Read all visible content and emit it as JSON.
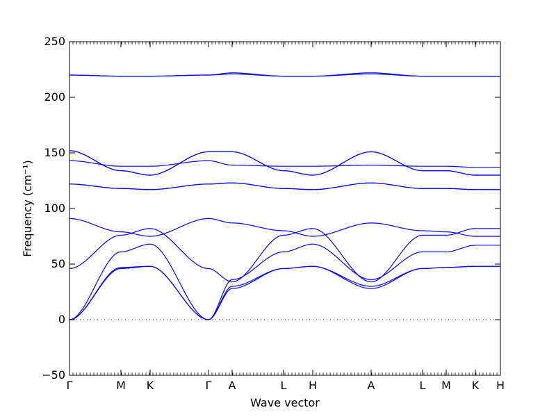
{
  "chart_data": {
    "type": "line",
    "title": "",
    "xlabel": "Wave vector",
    "ylabel": "Frequency (cm⁻¹)",
    "ylim": [
      -50,
      250
    ],
    "yticks": [
      -50,
      0,
      50,
      100,
      150,
      200,
      250
    ],
    "x_range": [
      0,
      6.2
    ],
    "grid": false,
    "legend": "none",
    "line_color": "#0000ff",
    "zero_line": {
      "value": 0,
      "style": "dotted",
      "color": "#1a1a80"
    },
    "x_ticks": [
      {
        "label": "Γ",
        "x": 0.0
      },
      {
        "label": "M",
        "x": 0.74
      },
      {
        "label": "K",
        "x": 1.16
      },
      {
        "label": "Γ",
        "x": 2.0
      },
      {
        "label": "A",
        "x": 2.34
      },
      {
        "label": "L",
        "x": 3.08
      },
      {
        "label": "H",
        "x": 3.5
      },
      {
        "label": "A",
        "x": 4.34
      },
      {
        "label": "L",
        "x": 5.08
      },
      {
        "label": "M",
        "x": 5.42
      },
      {
        "label": "K",
        "x": 5.84
      },
      {
        "label": "H",
        "x": 6.2
      }
    ],
    "series": [
      {
        "x": [
          0,
          0.74,
          1.16,
          2.0,
          2.34,
          3.08,
          3.5,
          4.34,
          5.08,
          5.42,
          5.84,
          6.2
        ],
        "y": [
          0,
          46,
          48,
          0,
          28,
          46,
          48,
          28,
          46,
          47,
          48,
          48
        ]
      },
      {
        "x": [
          0,
          0.74,
          1.16,
          2.0,
          2.34,
          3.08,
          3.5,
          4.34,
          5.08,
          5.42,
          5.84,
          6.2
        ],
        "y": [
          0,
          47,
          48,
          0,
          30,
          46,
          48,
          30,
          46,
          47,
          48,
          48
        ]
      },
      {
        "x": [
          0,
          0.74,
          1.16,
          2.0,
          2.34,
          3.08,
          3.5,
          4.34,
          5.08,
          5.42,
          5.84,
          6.2
        ],
        "y": [
          0,
          61,
          68,
          0,
          36,
          61,
          68,
          36,
          61,
          61,
          67,
          67
        ]
      },
      {
        "x": [
          0,
          0.74,
          1.16,
          2.0,
          2.34,
          3.08,
          3.5,
          4.34,
          5.08,
          5.42,
          5.84,
          6.2
        ],
        "y": [
          46,
          76,
          82,
          46,
          34,
          76,
          82,
          34,
          76,
          76,
          82,
          82
        ]
      },
      {
        "x": [
          0,
          0.74,
          1.16,
          2.0,
          2.34,
          3.08,
          3.5,
          4.34,
          5.08,
          5.42,
          5.84,
          6.2
        ],
        "y": [
          91,
          79,
          75,
          91,
          87,
          80,
          75,
          87,
          80,
          79,
          75,
          75
        ]
      },
      {
        "x": [
          0,
          0.74,
          1.16,
          2.0,
          2.34,
          3.08,
          3.5,
          4.34,
          5.08,
          5.42,
          5.84,
          6.2
        ],
        "y": [
          122,
          118,
          117,
          122,
          123,
          118,
          117,
          123,
          118,
          118,
          117,
          117
        ]
      },
      {
        "x": [
          0,
          0.74,
          1.16,
          2.0,
          2.34,
          3.08,
          3.5,
          4.34,
          5.08,
          5.42,
          5.84,
          6.2
        ],
        "y": [
          122,
          118,
          117,
          122,
          123,
          118,
          117,
          123,
          118,
          118,
          117,
          117
        ]
      },
      {
        "x": [
          0,
          0.74,
          1.16,
          2.0,
          2.34,
          3.08,
          3.5,
          4.34,
          5.08,
          5.42,
          5.84,
          6.2
        ],
        "y": [
          143,
          138,
          138,
          143,
          139,
          138,
          138,
          139,
          138,
          138,
          137,
          137
        ]
      },
      {
        "x": [
          0,
          0.74,
          1.16,
          2.0,
          2.34,
          3.08,
          3.5,
          4.34,
          5.08,
          5.42,
          5.84,
          6.2
        ],
        "y": [
          152,
          134,
          130,
          151,
          151,
          134,
          130,
          151,
          134,
          134,
          130,
          130
        ]
      },
      {
        "x": [
          0,
          0.74,
          1.16,
          2.0,
          2.34,
          3.08,
          3.5,
          4.34,
          5.08,
          5.42,
          5.84,
          6.2
        ],
        "y": [
          152,
          134,
          130,
          151,
          151,
          134,
          130,
          151,
          134,
          134,
          130,
          130
        ]
      },
      {
        "x": [
          0,
          0.74,
          1.16,
          2.0,
          2.34,
          3.08,
          3.5,
          4.34,
          5.08,
          5.42,
          5.84,
          6.2
        ],
        "y": [
          220,
          219,
          219,
          220,
          221,
          219,
          219,
          221,
          219,
          219,
          219,
          219
        ]
      },
      {
        "x": [
          0,
          0.74,
          1.16,
          2.0,
          2.34,
          3.08,
          3.5,
          4.34,
          5.08,
          5.42,
          5.84,
          6.2
        ],
        "y": [
          220,
          219,
          219,
          220,
          222,
          219,
          219,
          222,
          219,
          219,
          219,
          219
        ]
      }
    ]
  }
}
